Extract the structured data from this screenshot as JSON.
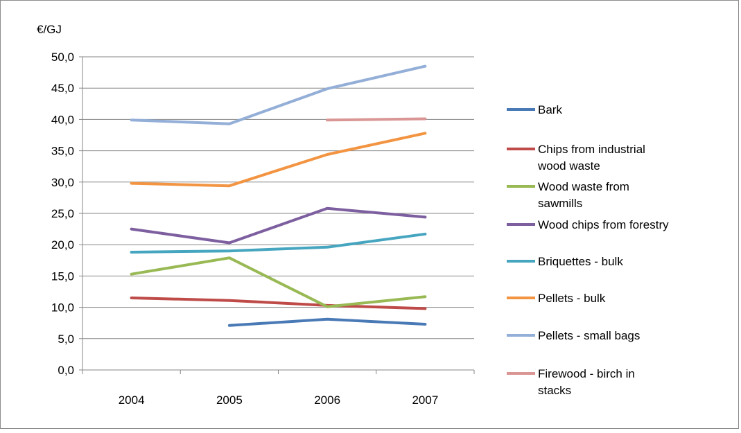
{
  "chart_data": {
    "type": "line",
    "ylabel": "€/GJ",
    "ylim": [
      0,
      50
    ],
    "y_ticks": [
      "0,0",
      "5,0",
      "10,0",
      "15,0",
      "20,0",
      "25,0",
      "30,0",
      "35,0",
      "40,0",
      "45,0",
      "50,0"
    ],
    "categories": [
      "2004",
      "2005",
      "2006",
      "2007"
    ],
    "grid": "horizontal",
    "legend_position": "right",
    "series": [
      {
        "name": "Bark",
        "color": "#4a7ab6",
        "values": [
          null,
          7.1,
          8.1,
          7.3
        ]
      },
      {
        "name": "Chips from industrial wood waste",
        "color": "#be4b48",
        "values": [
          11.5,
          11.1,
          10.3,
          9.8
        ]
      },
      {
        "name": "Wood waste from sawmills",
        "color": "#98b954",
        "values": [
          15.3,
          17.9,
          10.1,
          11.7
        ]
      },
      {
        "name": "Wood chips from forestry",
        "color": "#7d5fa0",
        "values": [
          22.5,
          20.3,
          25.8,
          24.4
        ]
      },
      {
        "name": "Briquettes - bulk",
        "color": "#46a5bf",
        "values": [
          18.8,
          19.0,
          19.6,
          21.7
        ]
      },
      {
        "name": "Pellets - bulk",
        "color": "#f29441",
        "values": [
          29.8,
          29.4,
          34.4,
          37.8
        ]
      },
      {
        "name": "Pellets - small bags",
        "color": "#93aed7",
        "values": [
          39.9,
          39.3,
          44.9,
          48.5
        ]
      },
      {
        "name": "Firewood -  birch in stacks",
        "color": "#d99694",
        "values": [
          null,
          null,
          39.9,
          40.1
        ]
      }
    ]
  },
  "legend_lines": [
    [
      "Bark"
    ],
    [
      "Chips from industrial",
      "wood waste"
    ],
    [
      "Wood waste  from",
      "sawmills"
    ],
    [
      "Wood chips from forestry"
    ],
    [
      "Briquettes - bulk"
    ],
    [
      "Pellets - bulk"
    ],
    [
      "Pellets - small bags"
    ],
    [
      "Firewood -  birch in",
      "stacks"
    ]
  ]
}
